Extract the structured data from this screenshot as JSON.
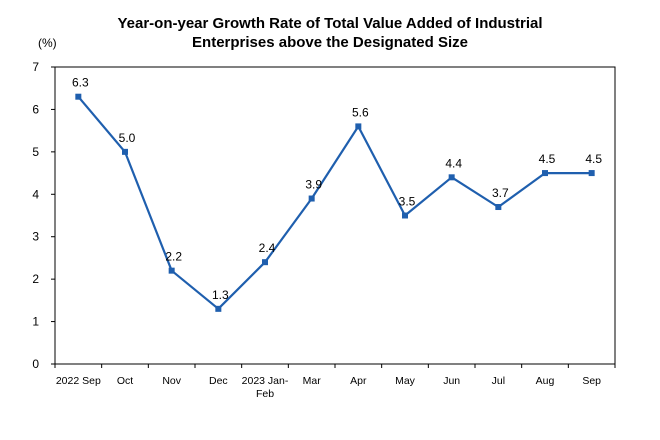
{
  "chart_data": {
    "type": "line",
    "title_line1": "Year-on-year Growth Rate of Total Value Added of Industrial",
    "title_line2": "Enterprises above the Designated Size",
    "unit": "(%)",
    "categories": [
      "2022 Sep",
      "Oct",
      "Nov",
      "Dec",
      "2023 Jan-Feb",
      "Mar",
      "Apr",
      "May",
      "Jun",
      "Jul",
      "Aug",
      "Sep"
    ],
    "category_lines": [
      [
        "2022 Sep"
      ],
      [
        "Oct"
      ],
      [
        "Nov"
      ],
      [
        "Dec"
      ],
      [
        "2023 Jan-",
        "Feb"
      ],
      [
        "Mar"
      ],
      [
        "Apr"
      ],
      [
        "May"
      ],
      [
        "Jun"
      ],
      [
        "Jul"
      ],
      [
        "Aug"
      ],
      [
        "Sep"
      ]
    ],
    "values": [
      6.3,
      5.0,
      2.2,
      1.3,
      2.4,
      3.9,
      5.6,
      3.5,
      4.4,
      3.7,
      4.5,
      4.5
    ],
    "labels": [
      "6.3",
      "5.0",
      "2.2",
      "1.3",
      "2.4",
      "3.9",
      "5.6",
      "3.5",
      "4.4",
      "3.7",
      "4.5",
      "4.5"
    ],
    "ylim": [
      0,
      7
    ],
    "yticks": [
      0,
      1,
      2,
      3,
      4,
      5,
      6,
      7
    ],
    "line_color": "#1f5fae",
    "grid": false,
    "legend": "none"
  }
}
